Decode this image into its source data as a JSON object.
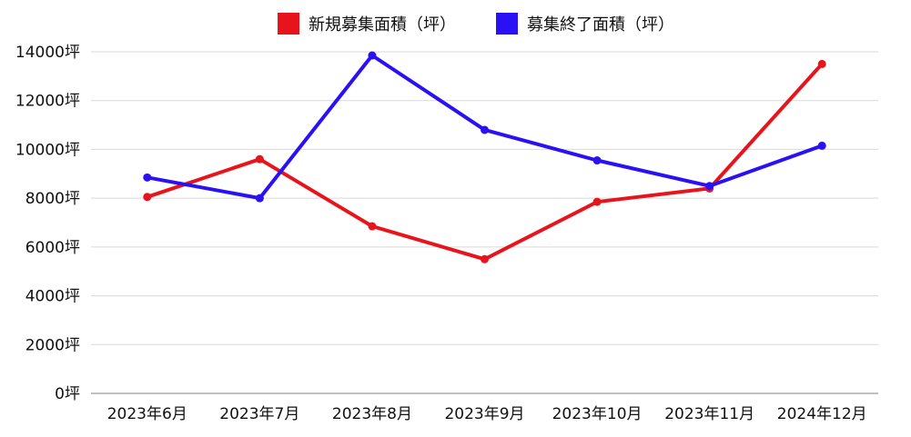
{
  "chart_data": {
    "type": "line",
    "categories": [
      "2023年6月",
      "2023年7月",
      "2023年8月",
      "2023年9月",
      "2023年10月",
      "2023年11月",
      "2024年12月"
    ],
    "series": [
      {
        "name": "新規募集面積（坪）",
        "color": "#e8141c",
        "values": [
          8050,
          9600,
          6850,
          5500,
          7850,
          8400,
          13500
        ]
      },
      {
        "name": "募集終了面積（坪）",
        "color": "#2a10f5",
        "values": [
          8850,
          8000,
          13850,
          10800,
          9550,
          8500,
          10150
        ]
      }
    ],
    "yticks": [
      "0坪",
      "2000坪",
      "4000坪",
      "6000坪",
      "8000坪",
      "10000坪",
      "12000坪",
      "14000坪"
    ],
    "ylim": [
      0,
      14000
    ],
    "grid": true,
    "legend_position": "top-center"
  }
}
